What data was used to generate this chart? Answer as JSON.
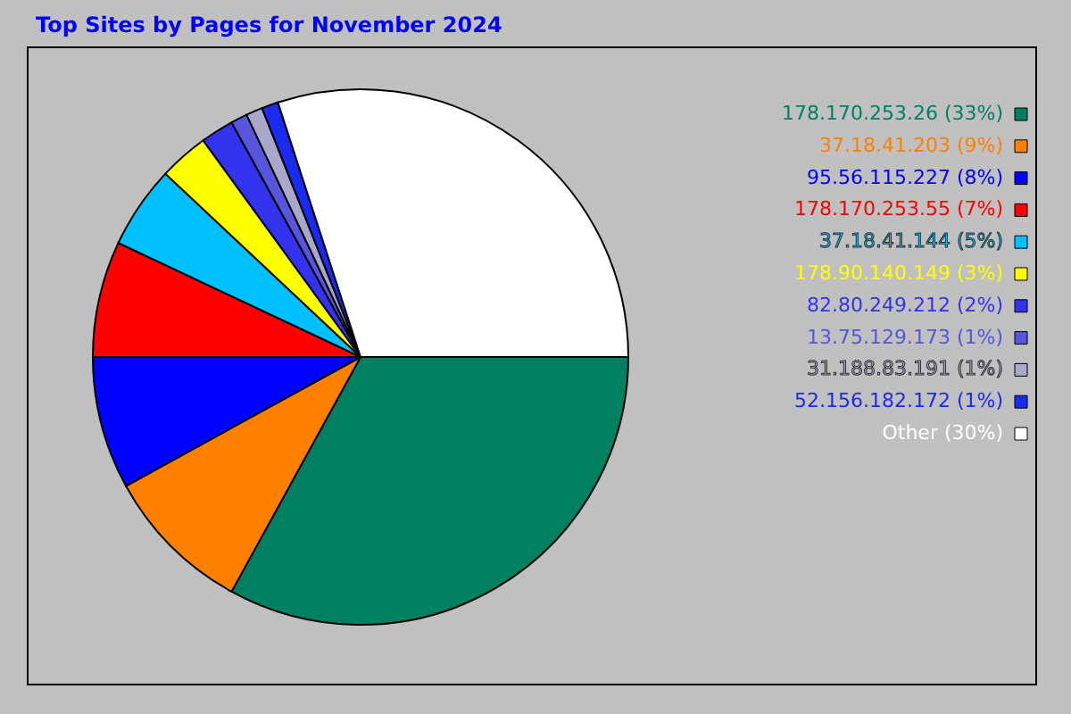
{
  "chart_data": {
    "type": "pie",
    "title": "Top Sites by Pages for November 2024",
    "categories": [
      "178.170.253.26",
      "37.18.41.203",
      "95.56.115.227",
      "178.170.253.55",
      "37.18.41.144",
      "178.90.140.149",
      "82.80.249.212",
      "13.75.129.173",
      "31.188.83.191",
      "52.156.182.172",
      "Other"
    ],
    "values": [
      33,
      9,
      8,
      7,
      5,
      3,
      2,
      1,
      1,
      1,
      30
    ],
    "value_labels": [
      "(33%)",
      "(9%)",
      "(8%)",
      "(7%)",
      "(5%)",
      "(3%)",
      "(2%)",
      "(1%)",
      "(1%)",
      "(1%)",
      "(30%)"
    ],
    "colors": [
      "#008060",
      "#ff8000",
      "#0000ff",
      "#ff0000",
      "#00c0ff",
      "#ffff00",
      "#3333ee",
      "#5555dd",
      "#a8a8c8",
      "#1a2af0",
      "#ffffff"
    ],
    "legend": "top right"
  }
}
